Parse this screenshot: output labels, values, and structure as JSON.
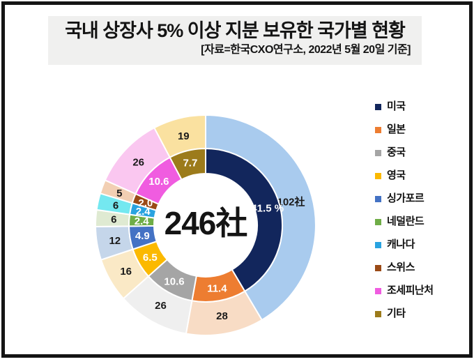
{
  "header": {
    "title": "국내 상장사 5% 이상 지분 보유한 국가별 현황",
    "subtitle": "[자료=한국CXO연구소, 2022년 5월 20일 기준]"
  },
  "chart_data": {
    "type": "pie",
    "variant": "nested-donut",
    "title": "국내 상장사 5% 이상 지분 보유한 국가별 현황",
    "source_note": "[자료=한국CXO연구소, 2022년 5월 20일 기준]",
    "categories": [
      "미국",
      "일본",
      "중국",
      "영국",
      "싱가포르",
      "네덜란드",
      "캐나다",
      "스위스",
      "조세피난처",
      "기타"
    ],
    "series": [
      {
        "name": "회사 수 (outer ring, 社)",
        "ring": "outer",
        "values": [
          102,
          28,
          26,
          16,
          12,
          6,
          6,
          5,
          26,
          19
        ],
        "labels": [
          "102社",
          "28",
          "26",
          "16",
          "12",
          "6",
          "6",
          "5",
          "26",
          "19"
        ],
        "colors": [
          "#a9cbee",
          "#f8dcc5",
          "#efefef",
          "#fae9c6",
          "#c5d6ea",
          "#dfead2",
          "#74e8f0",
          "#f2cfb3",
          "#fac7f0",
          "#fae1a0"
        ],
        "label_color": "#1a1a1a"
      },
      {
        "name": "비중 (inner ring, %)",
        "ring": "inner",
        "values": [
          41.5,
          11.4,
          10.6,
          6.5,
          4.9,
          2.4,
          2.4,
          2.0,
          10.6,
          7.7
        ],
        "labels": [
          "41.5 %",
          "11.4",
          "10.6",
          "6.5",
          "4.9",
          "2.4",
          "2.4",
          "2.0",
          "10.6",
          "7.7"
        ],
        "colors": [
          "#12265c",
          "#ed7d31",
          "#a5a5a5",
          "#fbb900",
          "#4472c4",
          "#6fad47",
          "#29a3e0",
          "#9a4a16",
          "#f05ce0",
          "#9c7b1b"
        ],
        "label_color": "#ffffff"
      }
    ],
    "total": 246,
    "center_label": "246社",
    "legend_position": "right",
    "start_angle_deg": 0,
    "direction": "clockwise"
  },
  "legend": {
    "items": [
      {
        "label": "미국",
        "color": "#12265c"
      },
      {
        "label": "일본",
        "color": "#ed7d31"
      },
      {
        "label": "중국",
        "color": "#a5a5a5"
      },
      {
        "label": "영국",
        "color": "#fbb900"
      },
      {
        "label": "싱가포르",
        "color": "#4472c4"
      },
      {
        "label": "네덜란드",
        "color": "#6fad47"
      },
      {
        "label": "캐나다",
        "color": "#29a3e0"
      },
      {
        "label": "스위스",
        "color": "#9a4a16"
      },
      {
        "label": "조세피난처",
        "color": "#f05ce0"
      },
      {
        "label": "기타",
        "color": "#9c7b1b"
      }
    ]
  }
}
